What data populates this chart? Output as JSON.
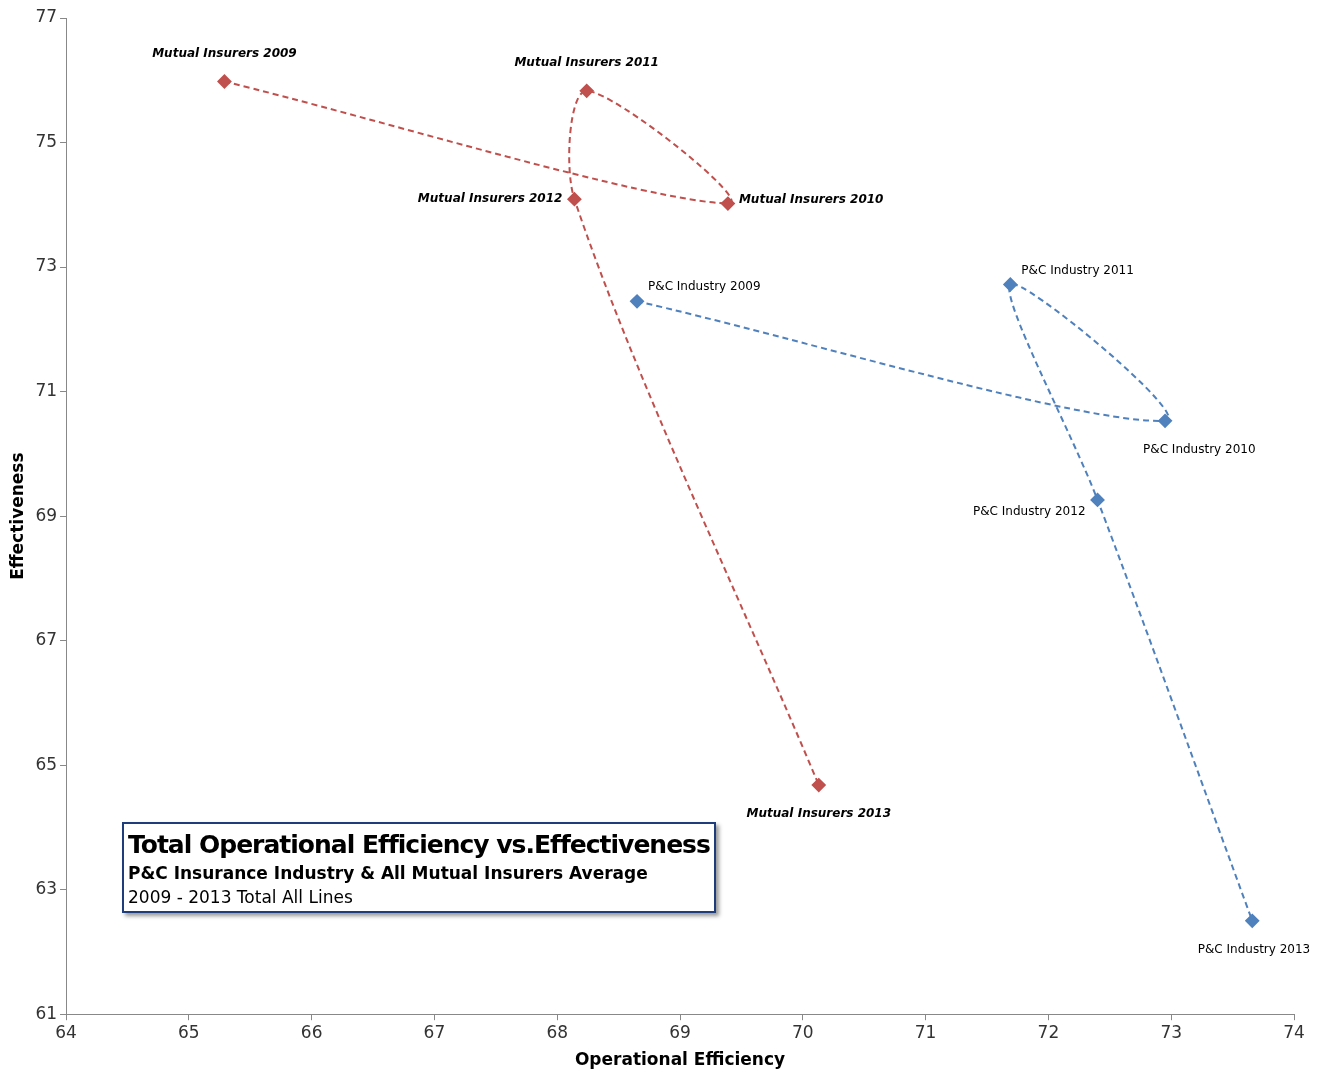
{
  "chart_data": {
    "type": "line",
    "title": "Total Operational Efficiency vs.Effectiveness",
    "subtitle": "P&C Insurance Industry & All Mutual Insurers Average",
    "annotations": [
      "2009 - 2013 Total All Lines"
    ],
    "xlabel": "Operational Efficiency",
    "ylabel": "Effectiveness",
    "xlim": [
      64,
      74
    ],
    "xticks": [
      64,
      65,
      66,
      67,
      68,
      69,
      70,
      71,
      72,
      73,
      74
    ],
    "ylim": [
      61,
      77
    ],
    "yticks": [
      61,
      63,
      65,
      67,
      69,
      71,
      73,
      75,
      77
    ],
    "grid": false,
    "legend": false,
    "marker": "diamond",
    "line_style": "dashed",
    "series": [
      {
        "color": "#c0504d",
        "x": [
          65.29,
          69.39,
          68.24,
          68.14,
          70.13
        ],
        "values": [
          75.98,
          74.02,
          75.83,
          74.09,
          64.68
        ],
        "value_labels": [
          "Mutual Insurers 2009",
          "Mutual Insurers 2010",
          "Mutual Insurers 2011",
          "Mutual Insurers 2012",
          "Mutual Insurers 2013"
        ]
      },
      {
        "color": "#4f81bd",
        "x": [
          68.65,
          72.95,
          71.69,
          72.4,
          73.66
        ],
        "values": [
          72.45,
          70.53,
          72.72,
          69.26,
          62.5
        ],
        "value_labels": [
          "P&C Industry 2009",
          "P&C Industry 2010",
          "P&C Industry 2011",
          "P&C Industry 2012",
          "P&C Industry 2013"
        ]
      }
    ]
  }
}
